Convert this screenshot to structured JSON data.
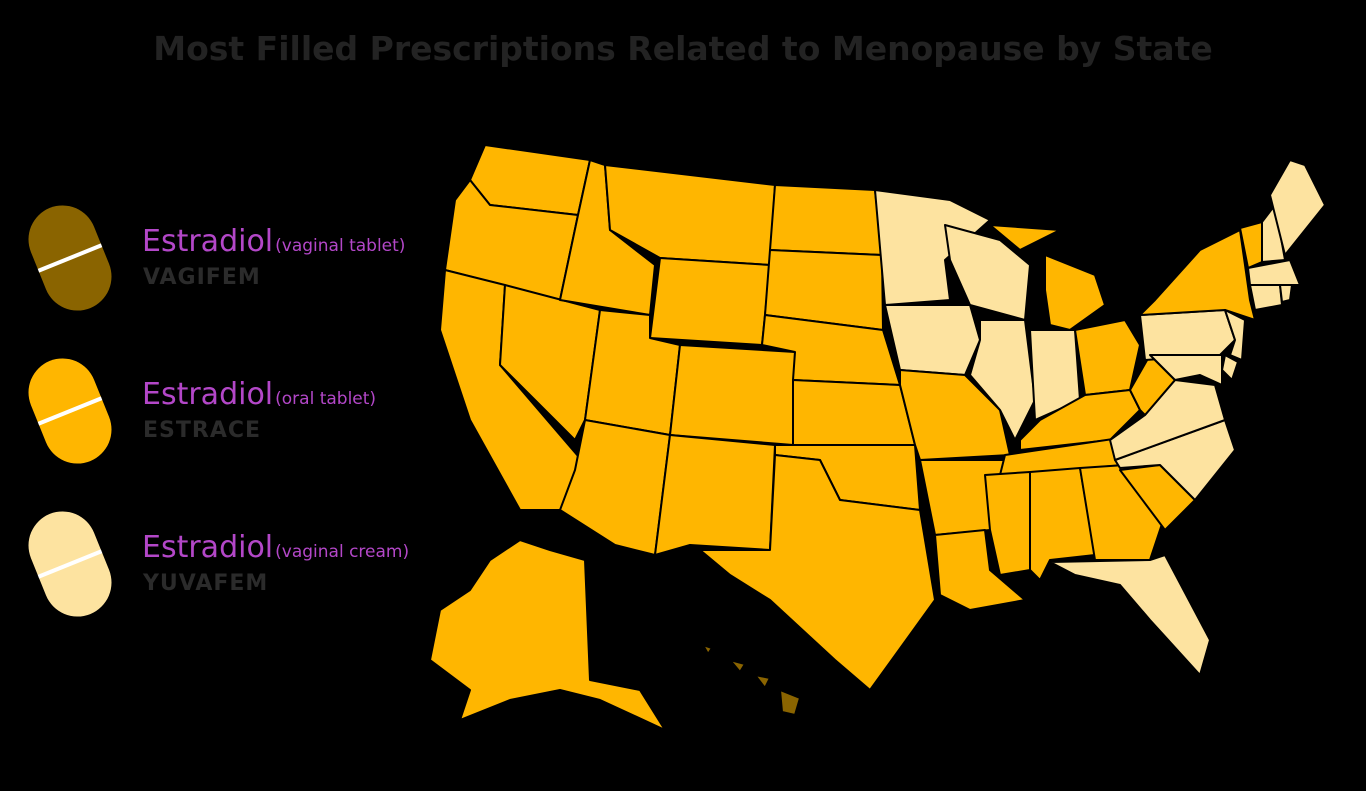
{
  "title": "Most Filled Prescriptions Related to Menopause by State",
  "legend": [
    {
      "drug": "Estradiol",
      "form": "(vaginal tablet)",
      "brand": "VAGIFEM",
      "color": "#8a6400"
    },
    {
      "drug": "Estradiol",
      "form": "(oral tablet)",
      "brand": "ESTRACE",
      "color": "#ffb600"
    },
    {
      "drug": "Estradiol",
      "form": "(vaginal cream)",
      "brand": "YUVAFEM",
      "color": "#fde3a0"
    }
  ],
  "states": {
    "WA": 1,
    "OR": 1,
    "CA": 1,
    "NV": 1,
    "ID": 1,
    "MT": 1,
    "WY": 1,
    "UT": 1,
    "AZ": 1,
    "CO": 1,
    "NM": 1,
    "ND": 1,
    "SD": 1,
    "NE": 1,
    "KS": 1,
    "OK": 1,
    "TX": 1,
    "MN": 2,
    "IA": 2,
    "MO": 1,
    "AR": 1,
    "LA": 1,
    "WI": 2,
    "IL": 2,
    "IN": 2,
    "MI": 1,
    "OH": 1,
    "KY": 1,
    "TN": 1,
    "MS": 1,
    "AL": 1,
    "GA": 1,
    "FL": 2,
    "SC": 1,
    "NC": 2,
    "VA": 2,
    "WV": 1,
    "PA": 2,
    "NY": 1,
    "VT": 1,
    "NH": 2,
    "ME": 2,
    "MA": 2,
    "CT": 2,
    "RI": 2,
    "NJ": 2,
    "DE": 2,
    "MD": 2,
    "AK": 1,
    "HI": 0
  }
}
